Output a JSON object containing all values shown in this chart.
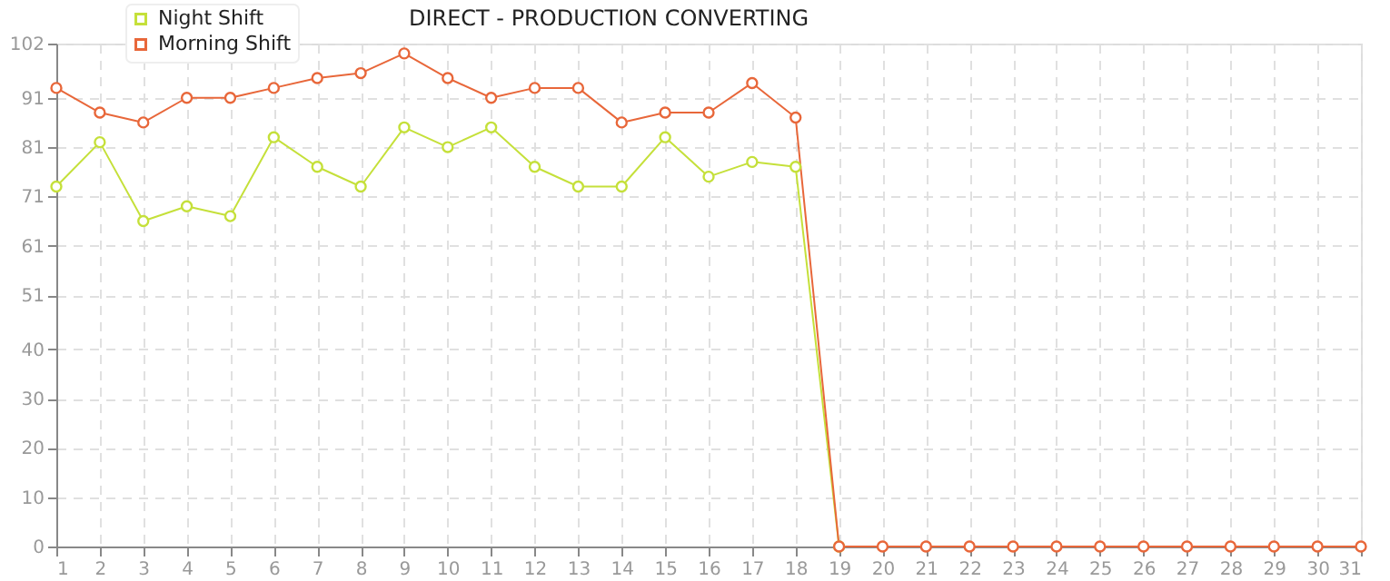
{
  "chart_data": {
    "type": "line",
    "title": "DIRECT - PRODUCTION CONVERTING",
    "x": [
      1,
      2,
      3,
      4,
      5,
      6,
      7,
      8,
      9,
      10,
      11,
      12,
      13,
      14,
      15,
      16,
      17,
      18,
      19,
      20,
      21,
      22,
      23,
      24,
      25,
      26,
      27,
      28,
      29,
      30,
      31
    ],
    "series": [
      {
        "name": "Night Shift",
        "color": "#c5e03a",
        "values": [
          73,
          82,
          66,
          69,
          67,
          83,
          77,
          73,
          85,
          81,
          85,
          77,
          73,
          73,
          83,
          75,
          78,
          77,
          0,
          null,
          null,
          null,
          null,
          null,
          null,
          null,
          null,
          null,
          null,
          null,
          null
        ]
      },
      {
        "name": "Morning Shift",
        "color": "#e8673a",
        "values": [
          93,
          88,
          86,
          91,
          91,
          93,
          95,
          96,
          100,
          95,
          91,
          93,
          93,
          86,
          88,
          88,
          94,
          87,
          0,
          0,
          0,
          0,
          0,
          0,
          0,
          0,
          0,
          0,
          0,
          0,
          0
        ]
      }
    ],
    "xlim": [
      1,
      31
    ],
    "xticks": [
      1,
      2,
      3,
      4,
      5,
      6,
      7,
      8,
      9,
      10,
      11,
      12,
      13,
      14,
      15,
      16,
      17,
      18,
      19,
      20,
      21,
      22,
      23,
      24,
      25,
      26,
      27,
      28,
      29,
      30,
      31
    ],
    "ylim": [
      0,
      102
    ],
    "yticks": [
      0,
      10,
      20,
      30,
      40,
      51,
      61,
      71,
      81,
      91,
      102
    ],
    "grid": true,
    "legend": "top left",
    "marker": "circle",
    "line_style": "solid"
  }
}
